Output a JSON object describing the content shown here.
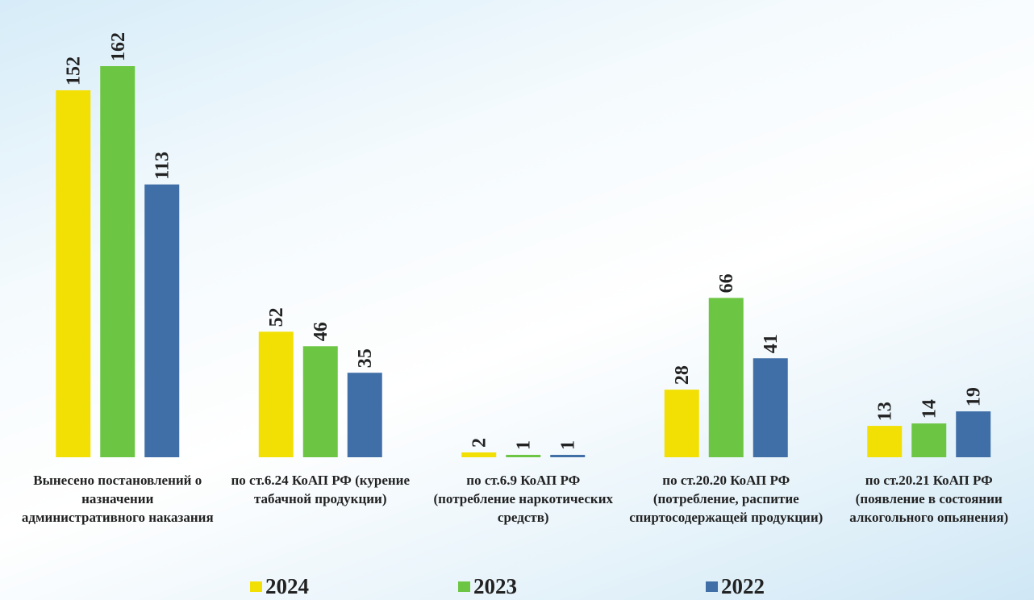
{
  "chart_data": {
    "type": "bar",
    "categories": [
      "Вынесено постановлений о назначении административного наказания",
      "по ст.6.24 КоАП РФ (курение табачной продукции)",
      "по ст.6.9 КоАП РФ (потребление наркотических средств)",
      "по ст.20.20 КоАП РФ (потребление, распитие спиртосодержащей продукции)",
      "по ст.20.21 КоАП РФ (появление в состоянии алкогольного опьянения)"
    ],
    "series": [
      {
        "name": "2024",
        "color": "#f2e005",
        "values": [
          152,
          52,
          2,
          28,
          13
        ]
      },
      {
        "name": "2023",
        "color": "#6cc644",
        "values": [
          162,
          46,
          1,
          66,
          14
        ]
      },
      {
        "name": "2022",
        "color": "#3f6fa6",
        "values": [
          113,
          35,
          1,
          41,
          19
        ]
      }
    ]
  }
}
